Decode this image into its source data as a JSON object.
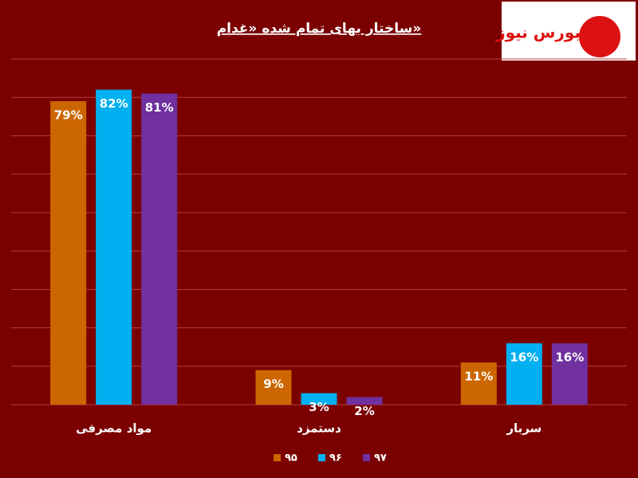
{
  "chart_data": {
    "type": "bar",
    "title": "ساختار بهای تمام شده «غدام»",
    "logo": "بورس نیوز",
    "categories": [
      "مواد مصرفی",
      "دستمزد",
      "سربار"
    ],
    "series": [
      {
        "name": "۹۵",
        "color": "#cc6600",
        "values": [
          79,
          9,
          11
        ],
        "value_labels": [
          "79%",
          "9%",
          "11%"
        ]
      },
      {
        "name": "۹۶",
        "color": "#00b0f0",
        "values": [
          82,
          3,
          16
        ],
        "value_labels": [
          "82%",
          "3%",
          "16%"
        ]
      },
      {
        "name": "۹۷",
        "color": "#7030a0",
        "values": [
          81,
          2,
          16
        ],
        "value_labels": [
          "81%",
          "2%",
          "16%"
        ]
      }
    ],
    "ylim": [
      0,
      90
    ],
    "yticks": [
      0,
      10,
      20,
      30,
      40,
      50,
      60,
      70,
      80,
      90
    ],
    "grid": true
  }
}
